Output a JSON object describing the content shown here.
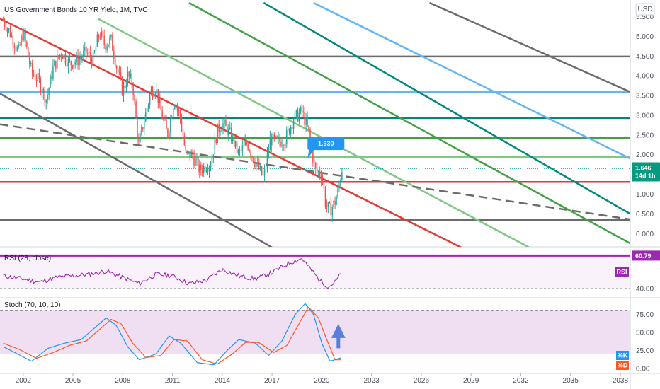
{
  "header": {
    "title": "US Government Bonds 10 YR Yield, 1M, TVC",
    "currency_button": "USD"
  },
  "colors": {
    "up": "#26a69a",
    "down": "#ef5350",
    "rsi": "#9c27b0",
    "stoch_k": "#2196f3",
    "stoch_d": "#ff5722",
    "price_badge": "#089981",
    "callout": "#2196f3",
    "arrow": "#5b7fd6"
  },
  "chart_data": [
    {
      "type": "line",
      "title": "US Government Bonds 10 YR Yield, 1M, TVC",
      "x_ticks": [
        "2002",
        "2005",
        "2008",
        "2011",
        "2014",
        "2017",
        "2020",
        "2023",
        "2026",
        "2029",
        "2032",
        "2035",
        "2038"
      ],
      "y_ticks": [
        "5.500",
        "5.000",
        "4.500",
        "4.000",
        "3.500",
        "3.000",
        "2.500",
        "2.000",
        "1.500",
        "1.000",
        "0.500",
        "0.000"
      ],
      "ylim": [
        -0.3,
        5.85
      ],
      "xlim": [
        2000.6,
        2038.6
      ],
      "series": [
        {
          "values_x": [
            2000.8,
            2001.2,
            2001.7,
            2002.0,
            2002.5,
            2002.9,
            2003.4,
            2003.8,
            2004.3,
            2004.8,
            2005.3,
            2005.8,
            2006.2,
            2006.6,
            2006.9,
            2007.3,
            2007.6,
            2008.0,
            2008.3,
            2008.6,
            2008.95,
            2009.3,
            2009.7,
            2010.0,
            2010.3,
            2010.7,
            2011.1,
            2011.5,
            2011.8,
            2012.2,
            2012.6,
            2012.9,
            2013.3,
            2013.7,
            2014.0,
            2014.5,
            2015.0,
            2015.5,
            2016.0,
            2016.5,
            2016.9,
            2017.3,
            2017.8,
            2018.3,
            2018.8,
            2019.2,
            2019.6,
            2020.0,
            2020.25,
            2020.5,
            2020.8,
            2021.05,
            2021.2
          ],
          "values": [
            5.4,
            5.1,
            4.6,
            5.1,
            4.1,
            3.9,
            3.4,
            4.2,
            4.6,
            4.3,
            4.4,
            4.6,
            4.4,
            5.1,
            4.8,
            4.9,
            4.3,
            3.6,
            4.0,
            3.8,
            2.2,
            2.9,
            3.6,
            3.7,
            3.1,
            2.5,
            3.4,
            2.9,
            2.0,
            2.0,
            1.6,
            1.7,
            1.8,
            2.6,
            2.8,
            2.5,
            2.0,
            2.3,
            1.8,
            1.4,
            2.4,
            2.3,
            2.4,
            2.9,
            3.1,
            2.6,
            1.6,
            1.5,
            0.7,
            0.6,
            0.8,
            1.2,
            1.646
          ]
        }
      ],
      "annotations": {
        "current_price": "1.646",
        "current_price_value": 1.646,
        "countdown": "14d 1h",
        "callout": "1.930",
        "callout_value": 1.93
      },
      "horizontal_levels": [
        {
          "value": 4.49,
          "color": "#6b6b6b"
        },
        {
          "value": 3.59,
          "color": "#64b5f6"
        },
        {
          "value": 2.93,
          "color": "#00897b"
        },
        {
          "value": 2.43,
          "color": "#43a047"
        },
        {
          "value": 1.94,
          "color": "#81c784"
        },
        {
          "value": 1.31,
          "color": "#e53935"
        },
        {
          "value": 0.34,
          "color": "#6b6b6b"
        }
      ],
      "trend_lines": [
        {
          "x0": 2000.6,
          "y0": 5.45,
          "x1": 2028.4,
          "y1": -0.35,
          "color": "#e53935"
        },
        {
          "x0": 2000.6,
          "y0": 3.55,
          "x1": 2017.0,
          "y1": -0.35,
          "color": "#6b6b6b"
        },
        {
          "x0": 2006.5,
          "y0": 5.45,
          "x1": 2032.5,
          "y1": -0.35,
          "color": "#81c784"
        },
        {
          "x0": 2012.0,
          "y0": 5.85,
          "x1": 2038.6,
          "y1": -0.25,
          "color": "#43a047"
        },
        {
          "x0": 2016.5,
          "y0": 5.85,
          "x1": 2038.6,
          "y1": 0.5,
          "color": "#00897b"
        },
        {
          "x0": 2019.5,
          "y0": 5.85,
          "x1": 2038.6,
          "y1": 1.9,
          "color": "#64b5f6"
        },
        {
          "x0": 2026.5,
          "y0": 5.85,
          "x1": 2038.6,
          "y1": 3.59,
          "color": "#6b6b6b"
        },
        {
          "x0": 2000.6,
          "y0": 2.77,
          "x1": 2038.6,
          "y1": 0.36,
          "color": "#6b6b6b",
          "dashed": true
        }
      ]
    },
    {
      "type": "line",
      "title": "RSI (28, close)",
      "label_badge": "RSI",
      "ylim": [
        35,
        65
      ],
      "y_ticks": [
        "40.00"
      ],
      "upper_band": 60.79,
      "upper_band_label": "60.79",
      "series": [
        {
          "name": "RSI",
          "values_x": [
            2000.8,
            2002.0,
            2003.0,
            2004.0,
            2005.0,
            2006.0,
            2007.0,
            2008.0,
            2009.0,
            2010.0,
            2011.0,
            2012.0,
            2013.0,
            2014.0,
            2015.0,
            2016.0,
            2017.0,
            2018.0,
            2018.8,
            2019.5,
            2020.0,
            2020.4,
            2020.8,
            2021.2
          ],
          "values": [
            48,
            46,
            44,
            47,
            48,
            49,
            51,
            47,
            43,
            49,
            48,
            43,
            45,
            52,
            48,
            46,
            50,
            56,
            59,
            50,
            44,
            41,
            44,
            50
          ]
        }
      ]
    },
    {
      "type": "line",
      "title": "Stoch (70, 10, 10)",
      "ylim": [
        -5,
        95
      ],
      "y_ticks": [
        "75.00",
        "50.00",
        "25.00",
        "0.00"
      ],
      "bands": [
        80,
        20
      ],
      "legend": [
        "%K",
        "%D"
      ],
      "series": [
        {
          "name": "%K",
          "values_x": [
            2000.8,
            2001.5,
            2002.5,
            2003.5,
            2004.5,
            2005.5,
            2006.5,
            2007.0,
            2007.6,
            2008.3,
            2009.0,
            2010.0,
            2010.8,
            2011.5,
            2012.5,
            2013.5,
            2014.3,
            2015.0,
            2016.0,
            2016.8,
            2017.6,
            2018.4,
            2019.0,
            2019.5,
            2020.0,
            2020.5,
            2021.2
          ],
          "values": [
            30,
            22,
            10,
            28,
            35,
            40,
            60,
            70,
            60,
            30,
            12,
            20,
            45,
            35,
            8,
            5,
            25,
            40,
            35,
            18,
            38,
            75,
            90,
            75,
            35,
            10,
            15
          ]
        },
        {
          "name": "%D",
          "values_x": [
            2000.8,
            2001.8,
            2002.8,
            2003.8,
            2004.8,
            2005.8,
            2006.8,
            2007.3,
            2007.9,
            2008.6,
            2009.4,
            2010.3,
            2011.1,
            2011.9,
            2012.8,
            2013.7,
            2014.6,
            2015.4,
            2016.2,
            2017.1,
            2017.9,
            2018.7,
            2019.2,
            2019.8,
            2020.3,
            2020.8,
            2021.2
          ],
          "values": [
            35,
            26,
            14,
            22,
            32,
            38,
            58,
            68,
            62,
            35,
            15,
            18,
            40,
            38,
            12,
            6,
            20,
            36,
            36,
            22,
            32,
            65,
            85,
            70,
            40,
            12,
            12
          ]
        }
      ]
    }
  ]
}
